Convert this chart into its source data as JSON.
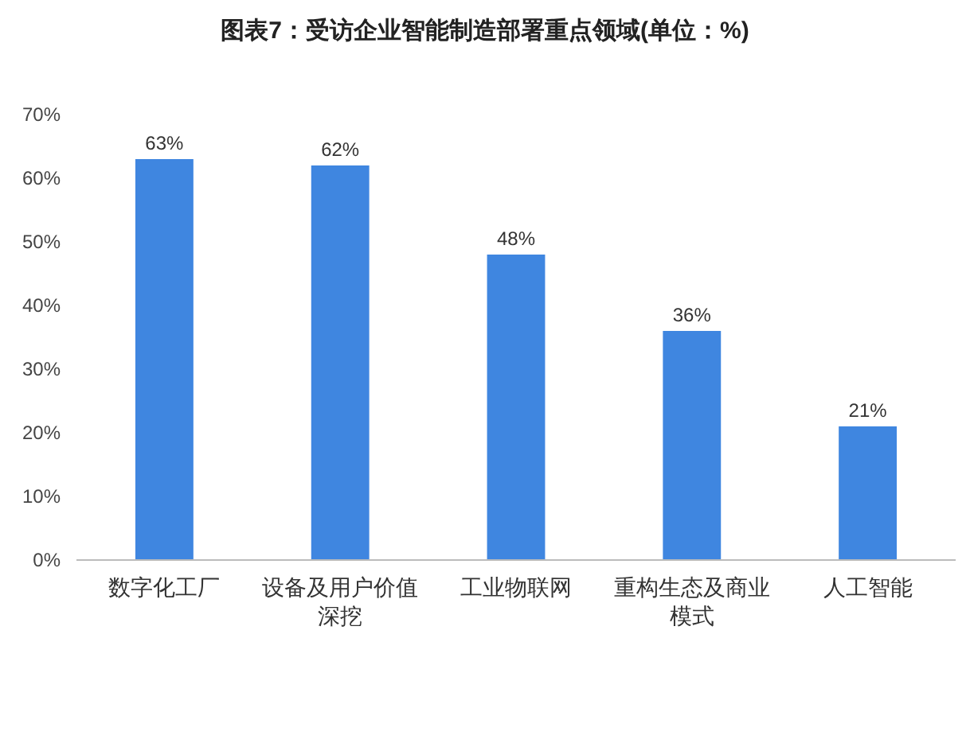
{
  "chart_data": {
    "type": "bar",
    "title": "图表7：受访企业智能制造部署重点领域(单位：%)",
    "categories": [
      "数字化工厂",
      "设备及用户价值深挖",
      "工业物联网",
      "重构生态及商业模式",
      "人工智能"
    ],
    "values": [
      63,
      62,
      48,
      36,
      21
    ],
    "value_labels": [
      "63%",
      "62%",
      "48%",
      "36%",
      "21%"
    ],
    "color": "#3f86e0",
    "ylim": [
      0,
      70
    ],
    "yticks": [
      {
        "value": 0,
        "label": "0%"
      },
      {
        "value": 10,
        "label": "10%"
      },
      {
        "value": 20,
        "label": "20%"
      },
      {
        "value": 30,
        "label": "30%"
      },
      {
        "value": 40,
        "label": "40%"
      },
      {
        "value": 50,
        "label": "50%"
      },
      {
        "value": 60,
        "label": "60%"
      },
      {
        "value": 70,
        "label": "70%"
      }
    ],
    "grid": false
  }
}
